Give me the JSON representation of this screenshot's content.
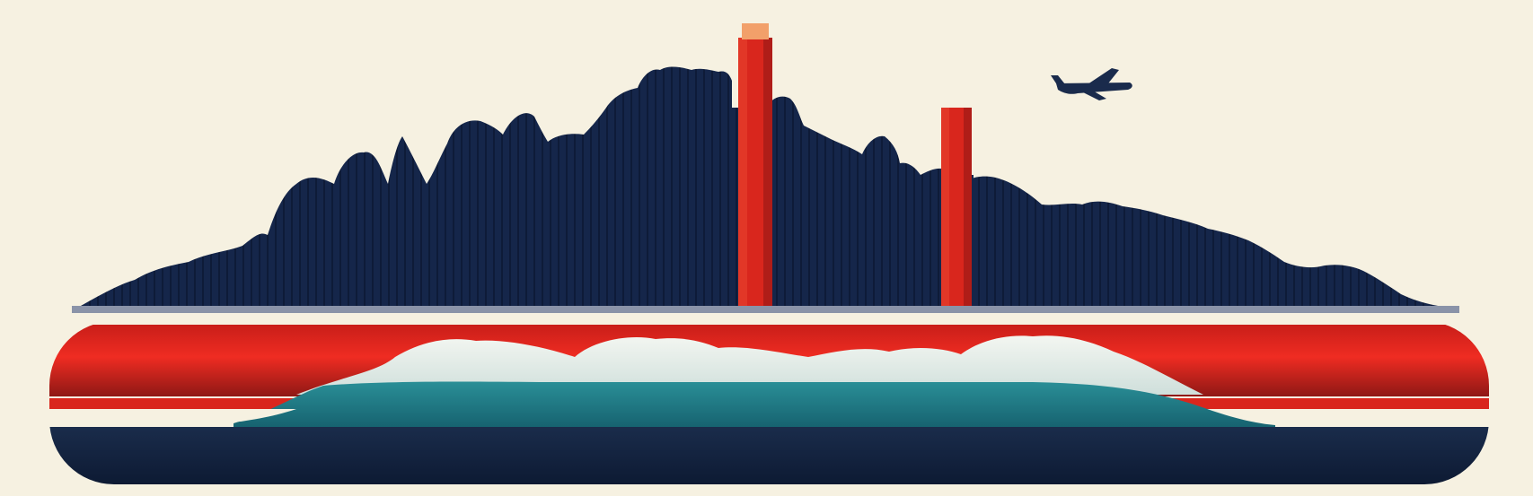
{
  "artwork": {
    "subject": "poster",
    "colors": {
      "background": "#f6f1e1",
      "navy": "#13233f",
      "red": "#d9261d",
      "dark_red": "#9c1a17",
      "teal": "#1d7b86",
      "mist": "#e6ede8",
      "orange_cap": "#f2a06a",
      "silver": "#8a93a8"
    },
    "icons": [
      "airplane-icon",
      "smokestack-icon",
      "skyline-icon",
      "wave-icon"
    ]
  }
}
